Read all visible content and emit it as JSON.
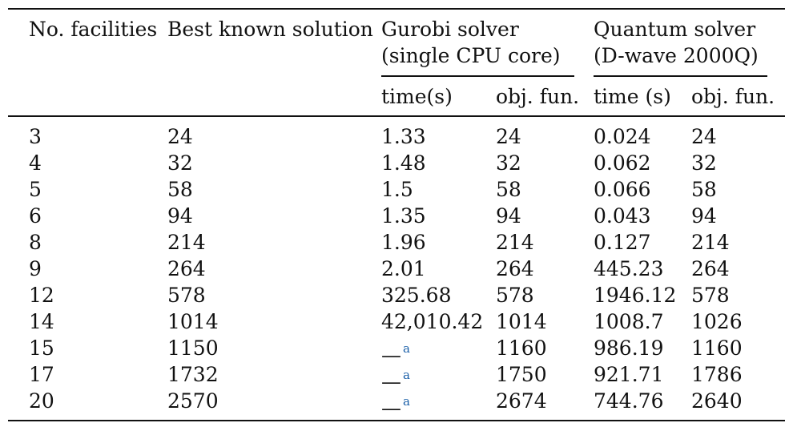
{
  "headers": {
    "facilities": "No. facilities",
    "best_known": "Best known solution",
    "gurobi_line1": "Gurobi solver",
    "gurobi_line2": "(single CPU core)",
    "quantum_line1": "Quantum solver",
    "quantum_line2": "(D-wave 2000Q)",
    "gurobi_time": "time(s)",
    "gurobi_obj": "obj. fun.",
    "quantum_time": "time (s)",
    "quantum_obj": "obj. fun."
  },
  "rows": [
    {
      "facilities": "3",
      "best": "24",
      "g_time": "1.33",
      "g_obj": "24",
      "q_time": "0.024",
      "q_obj": "24"
    },
    {
      "facilities": "4",
      "best": "32",
      "g_time": "1.48",
      "g_obj": "32",
      "q_time": "0.062",
      "q_obj": "32"
    },
    {
      "facilities": "5",
      "best": "58",
      "g_time": "1.5",
      "g_obj": "58",
      "q_time": "0.066",
      "q_obj": "58"
    },
    {
      "facilities": "6",
      "best": "94",
      "g_time": "1.35",
      "g_obj": "94",
      "q_time": "0.043",
      "q_obj": "94"
    },
    {
      "facilities": "8",
      "best": "214",
      "g_time": "1.96",
      "g_obj": "214",
      "q_time": "0.127",
      "q_obj": "214"
    },
    {
      "facilities": "9",
      "best": "264",
      "g_time": "2.01",
      "g_obj": "264",
      "q_time": "445.23",
      "q_obj": "264"
    },
    {
      "facilities": "12",
      "best": "578",
      "g_time": "325.68",
      "g_obj": "578",
      "q_time": "1946.12",
      "q_obj": "578"
    },
    {
      "facilities": "14",
      "best": "1014",
      "g_time": "42,010.42",
      "g_obj": "1014",
      "q_time": "1008.7",
      "q_obj": "1026"
    },
    {
      "facilities": "15",
      "best": "1150",
      "g_time": "—",
      "g_time_note": "a",
      "g_obj": "1160",
      "q_time": "986.19",
      "q_obj": "1160"
    },
    {
      "facilities": "17",
      "best": "1732",
      "g_time": "—",
      "g_time_note": "a",
      "g_obj": "1750",
      "q_time": "921.71",
      "q_obj": "1786"
    },
    {
      "facilities": "20",
      "best": "2570",
      "g_time": "—",
      "g_time_note": "a",
      "g_obj": "2674",
      "q_time": "744.76",
      "q_obj": "2640"
    }
  ],
  "colors": {
    "text": "#111111",
    "footnote_link": "#1a5fa8"
  }
}
